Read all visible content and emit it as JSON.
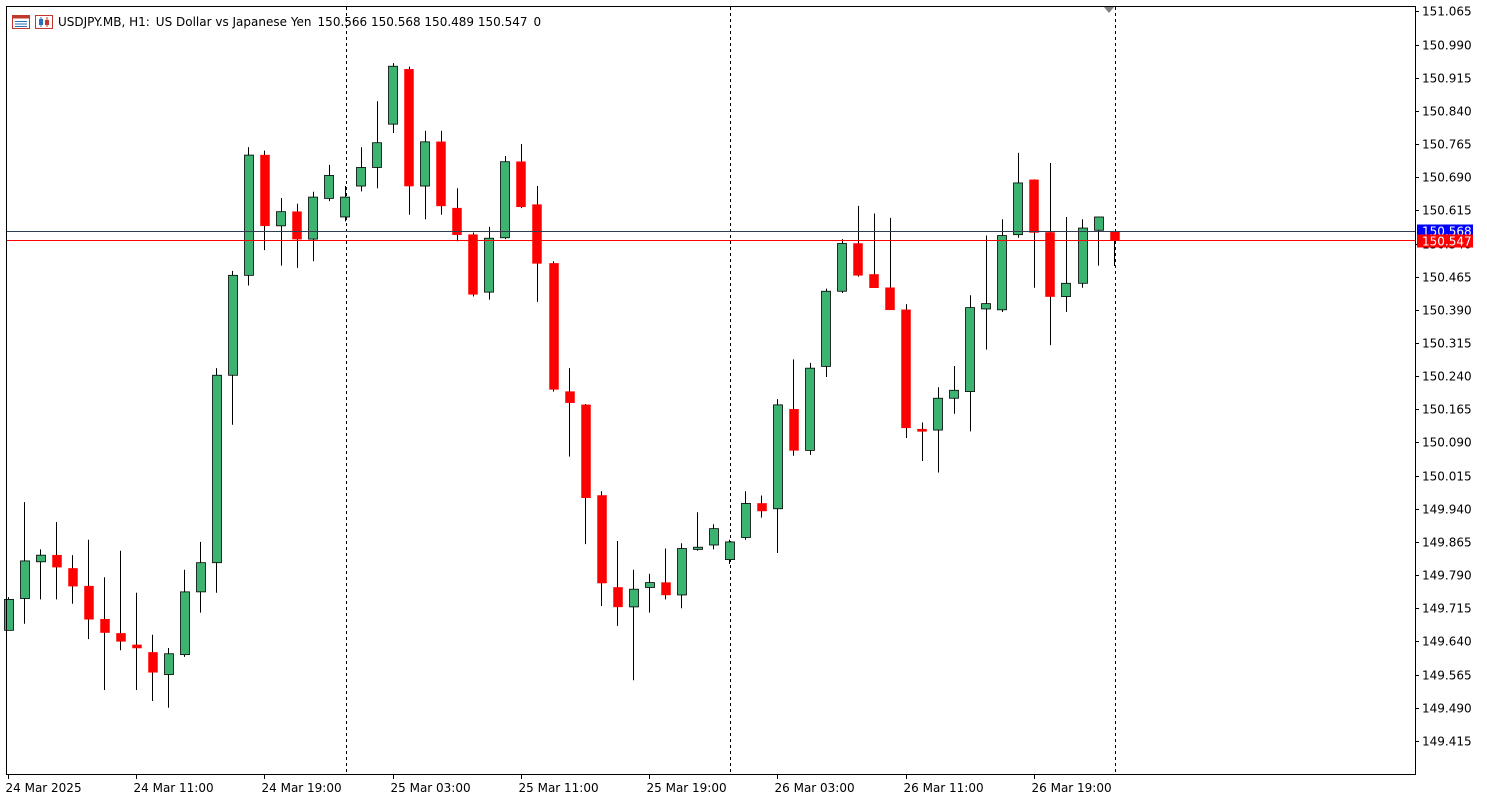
{
  "header": {
    "symbol_text": "USDJPY.MB, H1:",
    "description": "US Dollar vs Japanese Yen",
    "ohlc": "150.566 150.568 150.489 150.547",
    "extra": "0",
    "icons": [
      "list-window-icon",
      "candlestick-chart-icon"
    ]
  },
  "colors": {
    "bull": "#3cb371",
    "bear": "#ff0000",
    "wick": "#000000",
    "ask_line": "#2c3e50",
    "bid_line": "#ff0000",
    "ask_tag": "#0000ff",
    "bid_tag": "#ff0000"
  },
  "chart_data": {
    "type": "candlestick",
    "timeframe": "H1",
    "ylim": [
      149.34,
      151.075
    ],
    "y_ticks": [
      "151.065",
      "150.990",
      "150.915",
      "150.840",
      "150.765",
      "150.690",
      "150.615",
      "150.540",
      "150.465",
      "150.390",
      "150.315",
      "150.240",
      "150.165",
      "150.090",
      "150.015",
      "149.940",
      "149.865",
      "149.790",
      "149.715",
      "149.640",
      "149.565",
      "149.490",
      "149.415"
    ],
    "x_labels": [
      {
        "index": 0,
        "label": "24 Mar 2025"
      },
      {
        "index": 8,
        "label": "24 Mar 11:00"
      },
      {
        "index": 16,
        "label": "24 Mar 19:00"
      },
      {
        "index": 24,
        "label": "25 Mar 03:00"
      },
      {
        "index": 32,
        "label": "25 Mar 11:00"
      },
      {
        "index": 40,
        "label": "25 Mar 19:00"
      },
      {
        "index": 48,
        "label": "26 Mar 03:00"
      },
      {
        "index": 56,
        "label": "26 Mar 11:00"
      },
      {
        "index": 64,
        "label": "26 Mar 19:00"
      }
    ],
    "separators": [
      21,
      45,
      69
    ],
    "ask_price": "150.568",
    "bid_price": "150.547",
    "candles": [
      {
        "o": 149.665,
        "h": 149.74,
        "l": 149.665,
        "c": 149.735
      },
      {
        "o": 149.737,
        "h": 149.955,
        "l": 149.68,
        "c": 149.822
      },
      {
        "o": 149.82,
        "h": 149.848,
        "l": 149.735,
        "c": 149.835
      },
      {
        "o": 149.835,
        "h": 149.91,
        "l": 149.735,
        "c": 149.808
      },
      {
        "o": 149.805,
        "h": 149.835,
        "l": 149.725,
        "c": 149.765
      },
      {
        "o": 149.765,
        "h": 149.87,
        "l": 149.645,
        "c": 149.69
      },
      {
        "o": 149.69,
        "h": 149.785,
        "l": 149.53,
        "c": 149.66
      },
      {
        "o": 149.658,
        "h": 149.845,
        "l": 149.62,
        "c": 149.64
      },
      {
        "o": 149.632,
        "h": 149.75,
        "l": 149.53,
        "c": 149.625
      },
      {
        "o": 149.615,
        "h": 149.655,
        "l": 149.505,
        "c": 149.57
      },
      {
        "o": 149.565,
        "h": 149.625,
        "l": 149.49,
        "c": 149.612
      },
      {
        "o": 149.61,
        "h": 149.802,
        "l": 149.605,
        "c": 149.752
      },
      {
        "o": 149.752,
        "h": 149.865,
        "l": 149.705,
        "c": 149.818
      },
      {
        "o": 149.818,
        "h": 150.258,
        "l": 149.75,
        "c": 150.242
      },
      {
        "o": 150.242,
        "h": 150.478,
        "l": 150.13,
        "c": 150.468
      },
      {
        "o": 150.468,
        "h": 150.758,
        "l": 150.445,
        "c": 150.74
      },
      {
        "o": 150.74,
        "h": 150.75,
        "l": 150.525,
        "c": 150.58
      },
      {
        "o": 150.58,
        "h": 150.643,
        "l": 150.49,
        "c": 150.612
      },
      {
        "o": 150.612,
        "h": 150.63,
        "l": 150.485,
        "c": 150.55
      },
      {
        "o": 150.55,
        "h": 150.657,
        "l": 150.5,
        "c": 150.645
      },
      {
        "o": 150.642,
        "h": 150.718,
        "l": 150.636,
        "c": 150.694
      },
      {
        "o": 150.6,
        "h": 150.67,
        "l": 150.59,
        "c": 150.645
      },
      {
        "o": 150.67,
        "h": 150.758,
        "l": 150.658,
        "c": 150.712
      },
      {
        "o": 150.712,
        "h": 150.862,
        "l": 150.665,
        "c": 150.768
      },
      {
        "o": 150.81,
        "h": 150.948,
        "l": 150.79,
        "c": 150.941
      },
      {
        "o": 150.934,
        "h": 150.94,
        "l": 150.605,
        "c": 150.67
      },
      {
        "o": 150.67,
        "h": 150.795,
        "l": 150.595,
        "c": 150.77
      },
      {
        "o": 150.77,
        "h": 150.795,
        "l": 150.605,
        "c": 150.625
      },
      {
        "o": 150.62,
        "h": 150.665,
        "l": 150.545,
        "c": 150.56
      },
      {
        "o": 150.56,
        "h": 150.565,
        "l": 150.42,
        "c": 150.425
      },
      {
        "o": 150.43,
        "h": 150.578,
        "l": 150.413,
        "c": 150.552
      },
      {
        "o": 150.553,
        "h": 150.738,
        "l": 150.55,
        "c": 150.725
      },
      {
        "o": 150.725,
        "h": 150.765,
        "l": 150.62,
        "c": 150.623
      },
      {
        "o": 150.628,
        "h": 150.67,
        "l": 150.408,
        "c": 150.495
      },
      {
        "o": 150.495,
        "h": 150.5,
        "l": 150.205,
        "c": 150.21
      },
      {
        "o": 150.205,
        "h": 150.258,
        "l": 150.058,
        "c": 150.18
      },
      {
        "o": 150.175,
        "h": 150.177,
        "l": 149.86,
        "c": 149.965
      },
      {
        "o": 149.97,
        "h": 149.98,
        "l": 149.72,
        "c": 149.772
      },
      {
        "o": 149.762,
        "h": 149.867,
        "l": 149.675,
        "c": 149.718
      },
      {
        "o": 149.718,
        "h": 149.802,
        "l": 149.552,
        "c": 149.758
      },
      {
        "o": 149.762,
        "h": 149.793,
        "l": 149.705,
        "c": 149.773
      },
      {
        "o": 149.773,
        "h": 149.85,
        "l": 149.735,
        "c": 149.745
      },
      {
        "o": 149.745,
        "h": 149.862,
        "l": 149.715,
        "c": 149.85
      },
      {
        "o": 149.848,
        "h": 149.932,
        "l": 149.845,
        "c": 149.853
      },
      {
        "o": 149.858,
        "h": 149.905,
        "l": 149.848,
        "c": 149.895
      },
      {
        "o": 149.825,
        "h": 149.87,
        "l": 149.815,
        "c": 149.865
      },
      {
        "o": 149.875,
        "h": 149.98,
        "l": 149.87,
        "c": 149.952
      },
      {
        "o": 149.952,
        "h": 149.97,
        "l": 149.92,
        "c": 149.935
      },
      {
        "o": 149.94,
        "h": 150.188,
        "l": 149.84,
        "c": 150.175
      },
      {
        "o": 150.165,
        "h": 150.278,
        "l": 150.06,
        "c": 150.072
      },
      {
        "o": 150.072,
        "h": 150.27,
        "l": 150.062,
        "c": 150.258
      },
      {
        "o": 150.262,
        "h": 150.438,
        "l": 150.238,
        "c": 150.432
      },
      {
        "o": 150.432,
        "h": 150.55,
        "l": 150.428,
        "c": 150.54
      },
      {
        "o": 150.54,
        "h": 150.625,
        "l": 150.465,
        "c": 150.468
      },
      {
        "o": 150.47,
        "h": 150.608,
        "l": 150.44,
        "c": 150.44
      },
      {
        "o": 150.44,
        "h": 150.598,
        "l": 150.39,
        "c": 150.39
      },
      {
        "o": 150.39,
        "h": 150.403,
        "l": 150.1,
        "c": 150.123
      },
      {
        "o": 150.12,
        "h": 150.135,
        "l": 150.048,
        "c": 150.115
      },
      {
        "o": 150.118,
        "h": 150.215,
        "l": 150.022,
        "c": 150.19
      },
      {
        "o": 150.19,
        "h": 150.263,
        "l": 150.155,
        "c": 150.208
      },
      {
        "o": 150.205,
        "h": 150.423,
        "l": 150.115,
        "c": 150.395
      },
      {
        "o": 150.392,
        "h": 150.558,
        "l": 150.3,
        "c": 150.404
      },
      {
        "o": 150.39,
        "h": 150.595,
        "l": 150.385,
        "c": 150.558
      },
      {
        "o": 150.56,
        "h": 150.745,
        "l": 150.553,
        "c": 150.677
      },
      {
        "o": 150.684,
        "h": 150.685,
        "l": 150.44,
        "c": 150.565
      },
      {
        "o": 150.565,
        "h": 150.722,
        "l": 150.31,
        "c": 150.42
      },
      {
        "o": 150.42,
        "h": 150.6,
        "l": 150.385,
        "c": 150.45
      },
      {
        "o": 150.45,
        "h": 150.595,
        "l": 150.44,
        "c": 150.575
      },
      {
        "o": 150.57,
        "h": 150.6,
        "l": 150.49,
        "c": 150.6
      },
      {
        "o": 150.566,
        "h": 150.568,
        "l": 150.489,
        "c": 150.547
      }
    ]
  }
}
